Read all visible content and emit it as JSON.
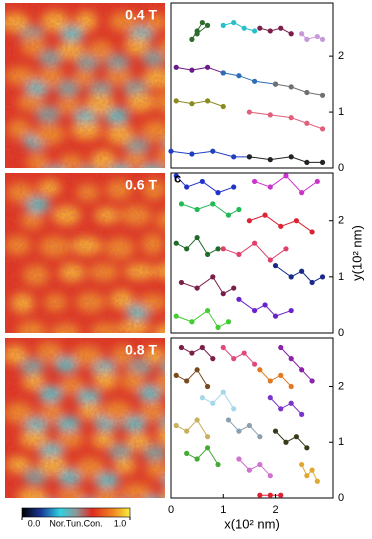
{
  "colorbar": {
    "label": "Nor.Tun.Con.",
    "ticks": [
      {
        "value": 0,
        "label": "0.0"
      },
      {
        "value": 1,
        "label": "1.0"
      }
    ]
  },
  "chart_data": [
    {
      "type": "scatter",
      "field_label": "0.4 T",
      "xlim": [
        0,
        3.1
      ],
      "ylim": [
        0,
        2.95
      ],
      "yticks": [
        0,
        1,
        2
      ],
      "series": [
        {
          "color": "#2e6b2e",
          "x": [
            0.4,
            0.5,
            0.6,
            0.7,
            0.5
          ],
          "values": [
            2.3,
            2.45,
            2.6,
            2.55,
            2.4
          ]
        },
        {
          "color": "#27c0c8",
          "x": [
            1.0,
            1.2,
            1.4,
            1.6
          ],
          "values": [
            2.55,
            2.6,
            2.5,
            2.45
          ]
        },
        {
          "color": "#7a1f4a",
          "x": [
            1.7,
            1.9,
            2.1,
            2.3
          ],
          "values": [
            2.5,
            2.45,
            2.5,
            2.4
          ]
        },
        {
          "color": "#c79ad9",
          "x": [
            2.5,
            2.6,
            2.8,
            2.9
          ],
          "values": [
            2.4,
            2.3,
            2.35,
            2.3
          ]
        },
        {
          "color": "#6a1b8a",
          "x": [
            0.1,
            0.4,
            0.7,
            1.0
          ],
          "values": [
            1.8,
            1.75,
            1.8,
            1.7
          ]
        },
        {
          "color": "#2a6fb5",
          "x": [
            1.0,
            1.3,
            1.6,
            2.0
          ],
          "values": [
            1.7,
            1.65,
            1.55,
            1.5
          ]
        },
        {
          "color": "#707070",
          "x": [
            2.0,
            2.3,
            2.6,
            2.9
          ],
          "values": [
            1.5,
            1.45,
            1.35,
            1.3
          ]
        },
        {
          "color": "#8a8a20",
          "x": [
            0.1,
            0.4,
            0.7,
            1.0
          ],
          "values": [
            1.2,
            1.15,
            1.2,
            1.1
          ]
        },
        {
          "color": "#e0607a",
          "x": [
            1.5,
            1.9,
            2.3,
            2.6,
            2.9
          ],
          "values": [
            1.0,
            0.95,
            0.9,
            0.8,
            0.7
          ]
        },
        {
          "color": "#1f3fbf",
          "x": [
            0.0,
            0.4,
            0.8,
            1.2,
            1.5
          ],
          "values": [
            0.3,
            0.25,
            0.3,
            0.2,
            0.2
          ]
        },
        {
          "color": "#222222",
          "x": [
            1.5,
            1.9,
            2.3,
            2.6,
            2.9
          ],
          "values": [
            0.2,
            0.15,
            0.2,
            0.1,
            0.1
          ]
        }
      ]
    },
    {
      "type": "scatter",
      "field_label": "0.6 T",
      "panel_label": "c",
      "ylabel": "y(10² nm)",
      "xlim": [
        0,
        3.1
      ],
      "ylim": [
        0,
        2.85
      ],
      "yticks": [
        0,
        1,
        2
      ],
      "series": [
        {
          "color": "#2233cc",
          "x": [
            0.1,
            0.3,
            0.6,
            0.9,
            1.2
          ],
          "values": [
            2.8,
            2.6,
            2.7,
            2.5,
            2.6
          ]
        },
        {
          "color": "#22bb55",
          "x": [
            0.2,
            0.5,
            0.8,
            1.1,
            1.3
          ],
          "values": [
            2.3,
            2.2,
            2.3,
            2.1,
            2.2
          ]
        },
        {
          "color": "#dd2233",
          "x": [
            1.5,
            1.8,
            2.1,
            2.4,
            2.7
          ],
          "values": [
            2.0,
            2.1,
            1.9,
            2.0,
            1.8
          ]
        },
        {
          "color": "#cc33cc",
          "x": [
            1.6,
            1.9,
            2.2,
            2.5,
            2.8
          ],
          "values": [
            2.7,
            2.6,
            2.8,
            2.5,
            2.7
          ]
        },
        {
          "color": "#1f6b2a",
          "x": [
            0.1,
            0.3,
            0.5,
            0.7,
            0.9
          ],
          "values": [
            1.6,
            1.5,
            1.7,
            1.4,
            1.5
          ]
        },
        {
          "color": "#e0406a",
          "x": [
            1.0,
            1.3,
            1.6,
            1.9,
            2.2
          ],
          "values": [
            1.5,
            1.4,
            1.6,
            1.3,
            1.5
          ]
        },
        {
          "color": "#1a2a8a",
          "x": [
            2.0,
            2.3,
            2.5,
            2.7,
            2.9
          ],
          "values": [
            1.2,
            1.0,
            1.1,
            0.9,
            1.0
          ]
        },
        {
          "color": "#7a1f4a",
          "x": [
            0.2,
            0.5,
            0.8,
            1.0,
            1.2
          ],
          "values": [
            0.9,
            0.8,
            1.0,
            0.7,
            0.8
          ]
        },
        {
          "color": "#6a22cc",
          "x": [
            1.3,
            1.6,
            1.8,
            2.0,
            2.3
          ],
          "values": [
            0.6,
            0.4,
            0.5,
            0.3,
            0.4
          ]
        },
        {
          "color": "#44cc33",
          "x": [
            0.1,
            0.4,
            0.7,
            0.9,
            1.1
          ],
          "values": [
            0.3,
            0.2,
            0.4,
            0.1,
            0.2
          ]
        }
      ]
    },
    {
      "type": "scatter",
      "field_label": "0.8 T",
      "xlabel": "x(10² nm)",
      "xlim": [
        0,
        3.1
      ],
      "ylim": [
        0,
        2.87
      ],
      "xticks": [
        0,
        1,
        2
      ],
      "yticks": [
        0,
        1,
        2
      ],
      "series": [
        {
          "color": "#7a1f4a",
          "x": [
            0.2,
            0.4,
            0.6,
            0.8
          ],
          "values": [
            2.7,
            2.6,
            2.7,
            2.5
          ]
        },
        {
          "color": "#e04a7a",
          "x": [
            1.0,
            1.2,
            1.4,
            1.6
          ],
          "values": [
            2.7,
            2.5,
            2.6,
            2.4
          ]
        },
        {
          "color": "#8a22aa",
          "x": [
            2.1,
            2.3,
            2.5,
            2.7
          ],
          "values": [
            2.7,
            2.5,
            2.3,
            2.1
          ]
        },
        {
          "color": "#7a4a1f",
          "x": [
            0.1,
            0.3,
            0.5,
            0.7
          ],
          "values": [
            2.2,
            2.1,
            2.3,
            2.0
          ]
        },
        {
          "color": "#e07a22",
          "x": [
            1.7,
            1.9,
            2.1,
            2.3
          ],
          "values": [
            2.3,
            2.1,
            2.2,
            2.0
          ]
        },
        {
          "color": "#a6d8ea",
          "x": [
            0.6,
            0.8,
            1.0,
            1.2
          ],
          "values": [
            1.8,
            1.7,
            1.9,
            1.6
          ]
        },
        {
          "color": "#7a33cc",
          "x": [
            1.9,
            2.1,
            2.3,
            2.5
          ],
          "values": [
            1.8,
            1.6,
            1.7,
            1.5
          ]
        },
        {
          "color": "#c8b060",
          "x": [
            0.1,
            0.3,
            0.5,
            0.7
          ],
          "values": [
            1.3,
            1.2,
            1.4,
            1.1
          ]
        },
        {
          "color": "#8aa0b0",
          "x": [
            1.1,
            1.3,
            1.5,
            1.7
          ],
          "values": [
            1.4,
            1.2,
            1.3,
            1.1
          ]
        },
        {
          "color": "#3a3a1a",
          "x": [
            2.0,
            2.2,
            2.4,
            2.6
          ],
          "values": [
            1.2,
            1.0,
            1.1,
            0.9
          ]
        },
        {
          "color": "#44aa33",
          "x": [
            0.3,
            0.5,
            0.7,
            0.9
          ],
          "values": [
            0.8,
            0.7,
            0.9,
            0.6
          ]
        },
        {
          "color": "#d070d0",
          "x": [
            1.3,
            1.5,
            1.7,
            1.9
          ],
          "values": [
            0.7,
            0.5,
            0.6,
            0.4
          ]
        },
        {
          "color": "#e0a830",
          "x": [
            2.5,
            2.6,
            2.7,
            2.8
          ],
          "values": [
            0.6,
            0.4,
            0.5,
            0.3
          ]
        },
        {
          "color": "#dd2233",
          "x": [
            1.7,
            1.9,
            2.1
          ],
          "values": [
            0.05,
            0.05,
            0.05
          ]
        }
      ]
    }
  ]
}
